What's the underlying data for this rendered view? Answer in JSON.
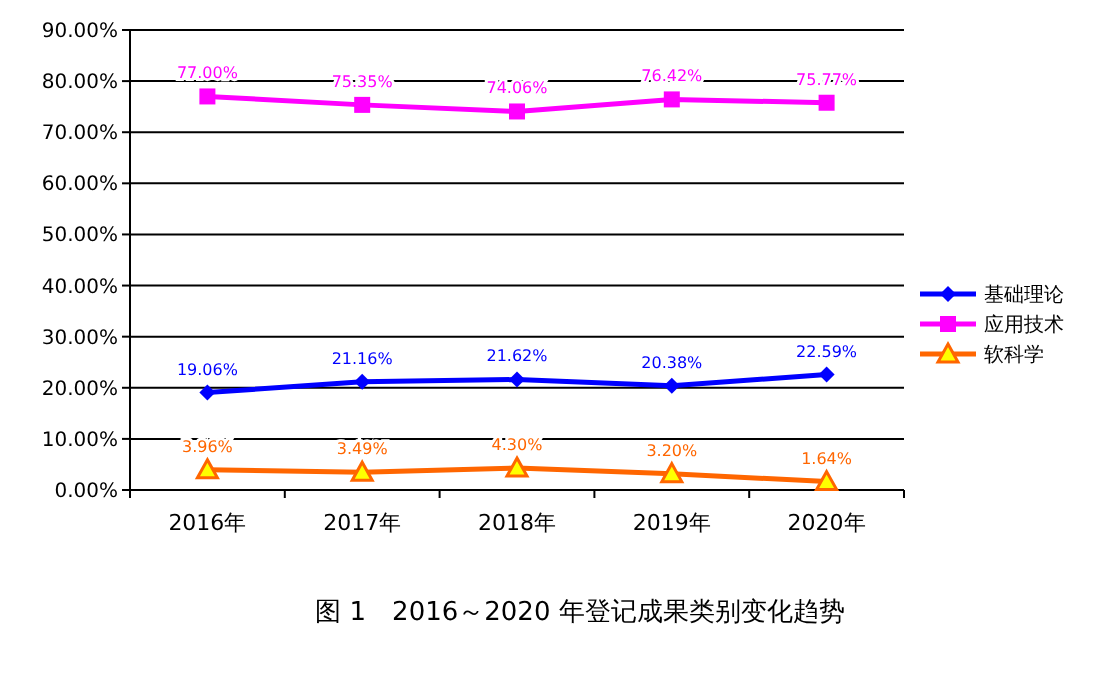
{
  "chart_data": {
    "type": "line",
    "categories": [
      "2016年",
      "2017年",
      "2018年",
      "2019年",
      "2020年"
    ],
    "series": [
      {
        "name": "基础理论",
        "color": "#0000ff",
        "marker": "diamond",
        "values": [
          19.06,
          21.16,
          21.62,
          20.38,
          22.59
        ],
        "value_labels": [
          "19.06%",
          "21.16%",
          "21.62%",
          "20.38%",
          "22.59%"
        ]
      },
      {
        "name": "应用技术",
        "color": "#ff00ff",
        "marker": "square",
        "values": [
          77.0,
          75.35,
          74.06,
          76.42,
          75.77
        ],
        "value_labels": [
          "77.00%",
          "75.35%",
          "74.06%",
          "76.42%",
          "75.77%"
        ]
      },
      {
        "name": "软科学",
        "color": "#ff6600",
        "marker": "triangle",
        "values": [
          3.96,
          3.49,
          4.3,
          3.2,
          1.64
        ],
        "value_labels": [
          "3.96%",
          "3.49%",
          "4.30%",
          "3.20%",
          "1.64%"
        ]
      }
    ],
    "ylim": [
      0,
      90
    ],
    "yticks": [
      {
        "value": 0,
        "label": "0.00%"
      },
      {
        "value": 10,
        "label": "10.00%"
      },
      {
        "value": 20,
        "label": "20.00%"
      },
      {
        "value": 30,
        "label": "30.00%"
      },
      {
        "value": 40,
        "label": "40.00%"
      },
      {
        "value": 50,
        "label": "50.00%"
      },
      {
        "value": 60,
        "label": "60.00%"
      },
      {
        "value": 70,
        "label": "70.00%"
      },
      {
        "value": 80,
        "label": "80.00%"
      },
      {
        "value": 90,
        "label": "90.00%"
      }
    ],
    "grid": "y",
    "legend": "right",
    "annotations": [
      "图 1　2016～2020 年登记成果类别变化趋势"
    ]
  }
}
